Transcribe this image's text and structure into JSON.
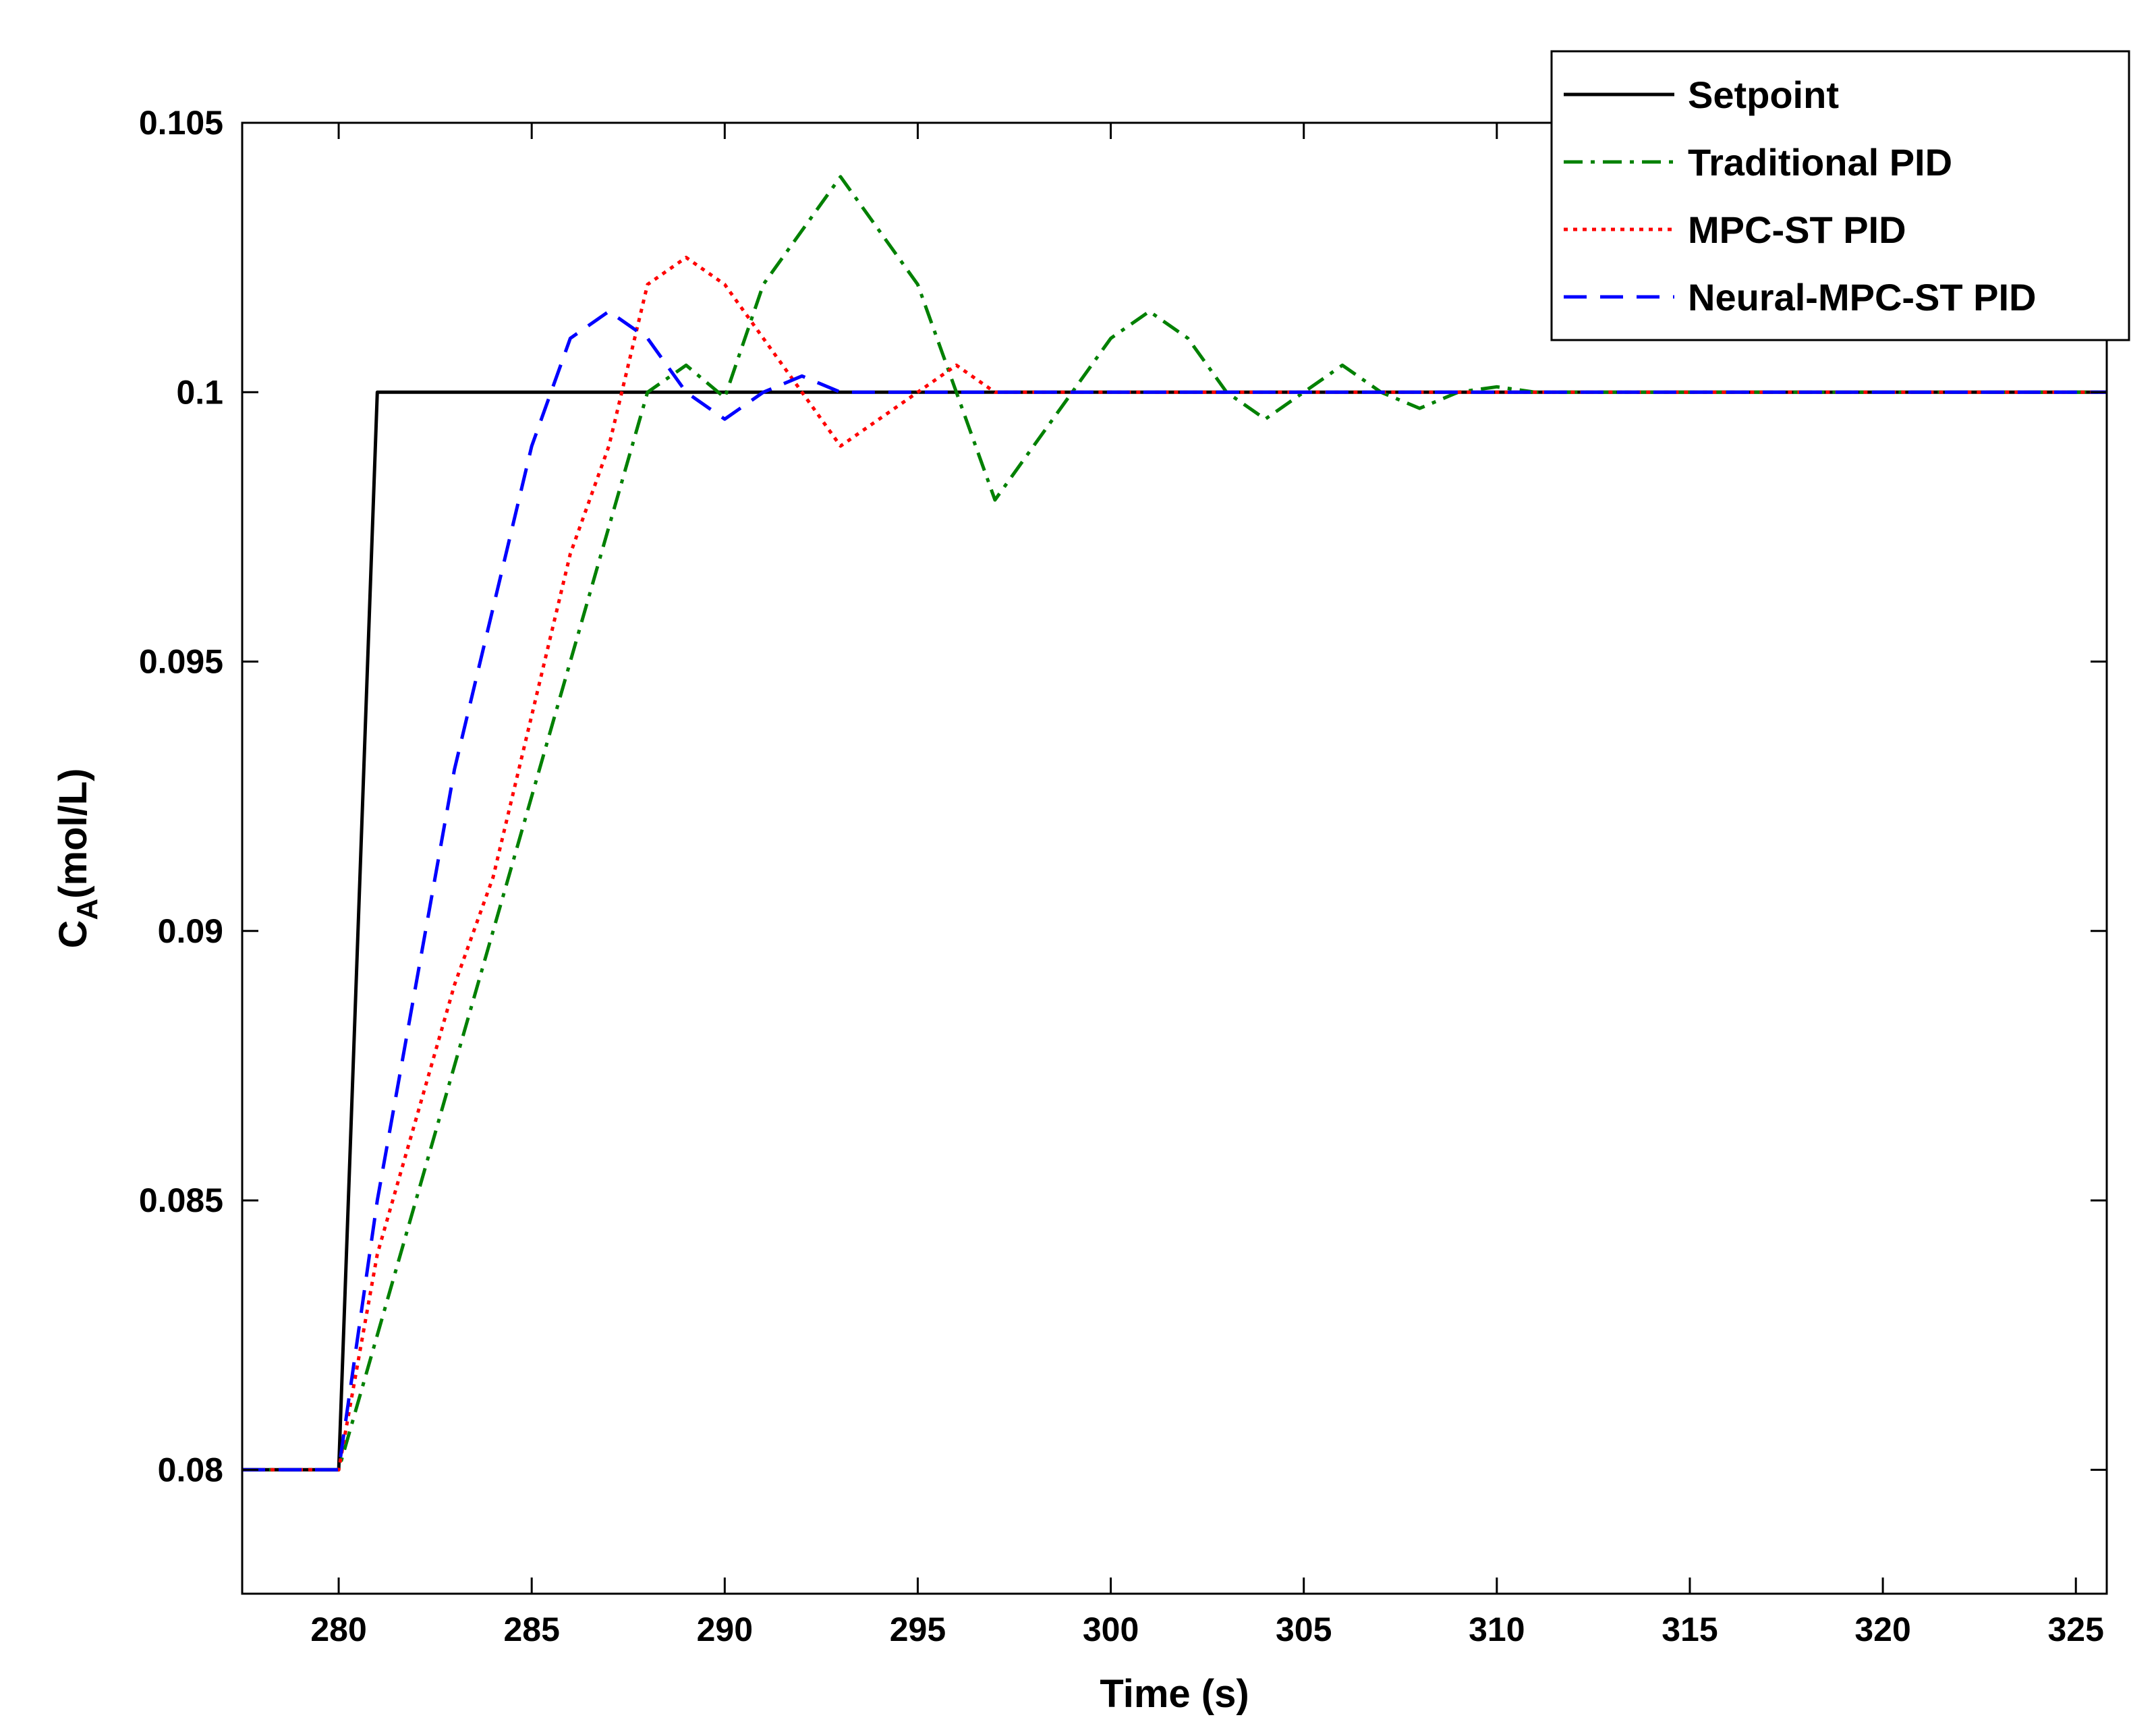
{
  "chart_data": {
    "type": "line",
    "title": "",
    "xlabel": "Time (s)",
    "ylabel_main": "C",
    "ylabel_sub": "A",
    "ylabel_rest": "(mol/L)",
    "xlim": [
      277.5,
      325.8
    ],
    "ylim": [
      0.0777,
      0.105
    ],
    "xticks": [
      280,
      285,
      290,
      295,
      300,
      305,
      310,
      315,
      320,
      325
    ],
    "xtick_labels": [
      "280",
      "285",
      "290",
      "295",
      "300",
      "305",
      "310",
      "315",
      "320",
      "325"
    ],
    "yticks": [
      0.08,
      0.085,
      0.09,
      0.095,
      0.1,
      0.105
    ],
    "ytick_labels": [
      "0.08",
      "0.085",
      "0.09",
      "0.095",
      "0.1",
      "0.105"
    ],
    "grid": false,
    "legend_position": "top-right",
    "series": [
      {
        "name": "Setpoint",
        "color": "#000000",
        "style": "solid",
        "x": [
          277.5,
          280,
          281,
          325.8
        ],
        "y": [
          0.08,
          0.08,
          0.1,
          0.1
        ]
      },
      {
        "name": "Traditional PID",
        "color": "#008000",
        "style": "dashdot",
        "x": [
          277.5,
          280,
          281,
          282,
          283,
          284,
          285,
          286,
          287,
          288,
          289,
          290,
          291,
          292,
          293,
          294,
          295,
          296,
          297,
          298,
          299,
          300,
          301,
          302,
          303,
          304,
          305,
          306,
          307,
          308,
          309,
          310,
          311,
          312,
          325.8
        ],
        "y": [
          0.08,
          0.08,
          0.0825,
          0.085,
          0.0875,
          0.09,
          0.0925,
          0.095,
          0.0975,
          0.1,
          0.1005,
          0.0999,
          0.102,
          0.103,
          0.104,
          0.103,
          0.102,
          0.1,
          0.098,
          0.099,
          0.1,
          0.101,
          0.1015,
          0.101,
          0.1,
          0.0995,
          0.1,
          0.1005,
          0.1,
          0.0997,
          0.1,
          0.1001,
          0.1,
          0.1,
          0.1
        ]
      },
      {
        "name": "MPC-ST PID",
        "color": "#ff0000",
        "style": "dotted",
        "x": [
          277.5,
          280,
          281,
          282,
          283,
          284,
          285,
          286,
          287,
          288,
          289,
          290,
          291,
          292,
          293,
          294,
          295,
          296,
          297,
          298,
          325.8
        ],
        "y": [
          0.08,
          0.08,
          0.084,
          0.0865,
          0.089,
          0.091,
          0.094,
          0.097,
          0.099,
          0.102,
          0.1025,
          0.102,
          0.101,
          0.1,
          0.099,
          0.0995,
          0.1,
          0.1005,
          0.1,
          0.1,
          0.1
        ]
      },
      {
        "name": "Neural-MPC-ST PID",
        "color": "#0000ff",
        "style": "dashed",
        "x": [
          277.5,
          280,
          281,
          282,
          283,
          284,
          285,
          286,
          287,
          288,
          289,
          290,
          291,
          292,
          293,
          294,
          325.8
        ],
        "y": [
          0.08,
          0.08,
          0.085,
          0.089,
          0.093,
          0.096,
          0.099,
          0.101,
          0.1015,
          0.101,
          0.1,
          0.0995,
          0.1,
          0.1003,
          0.1,
          0.1,
          0.1
        ]
      }
    ]
  }
}
